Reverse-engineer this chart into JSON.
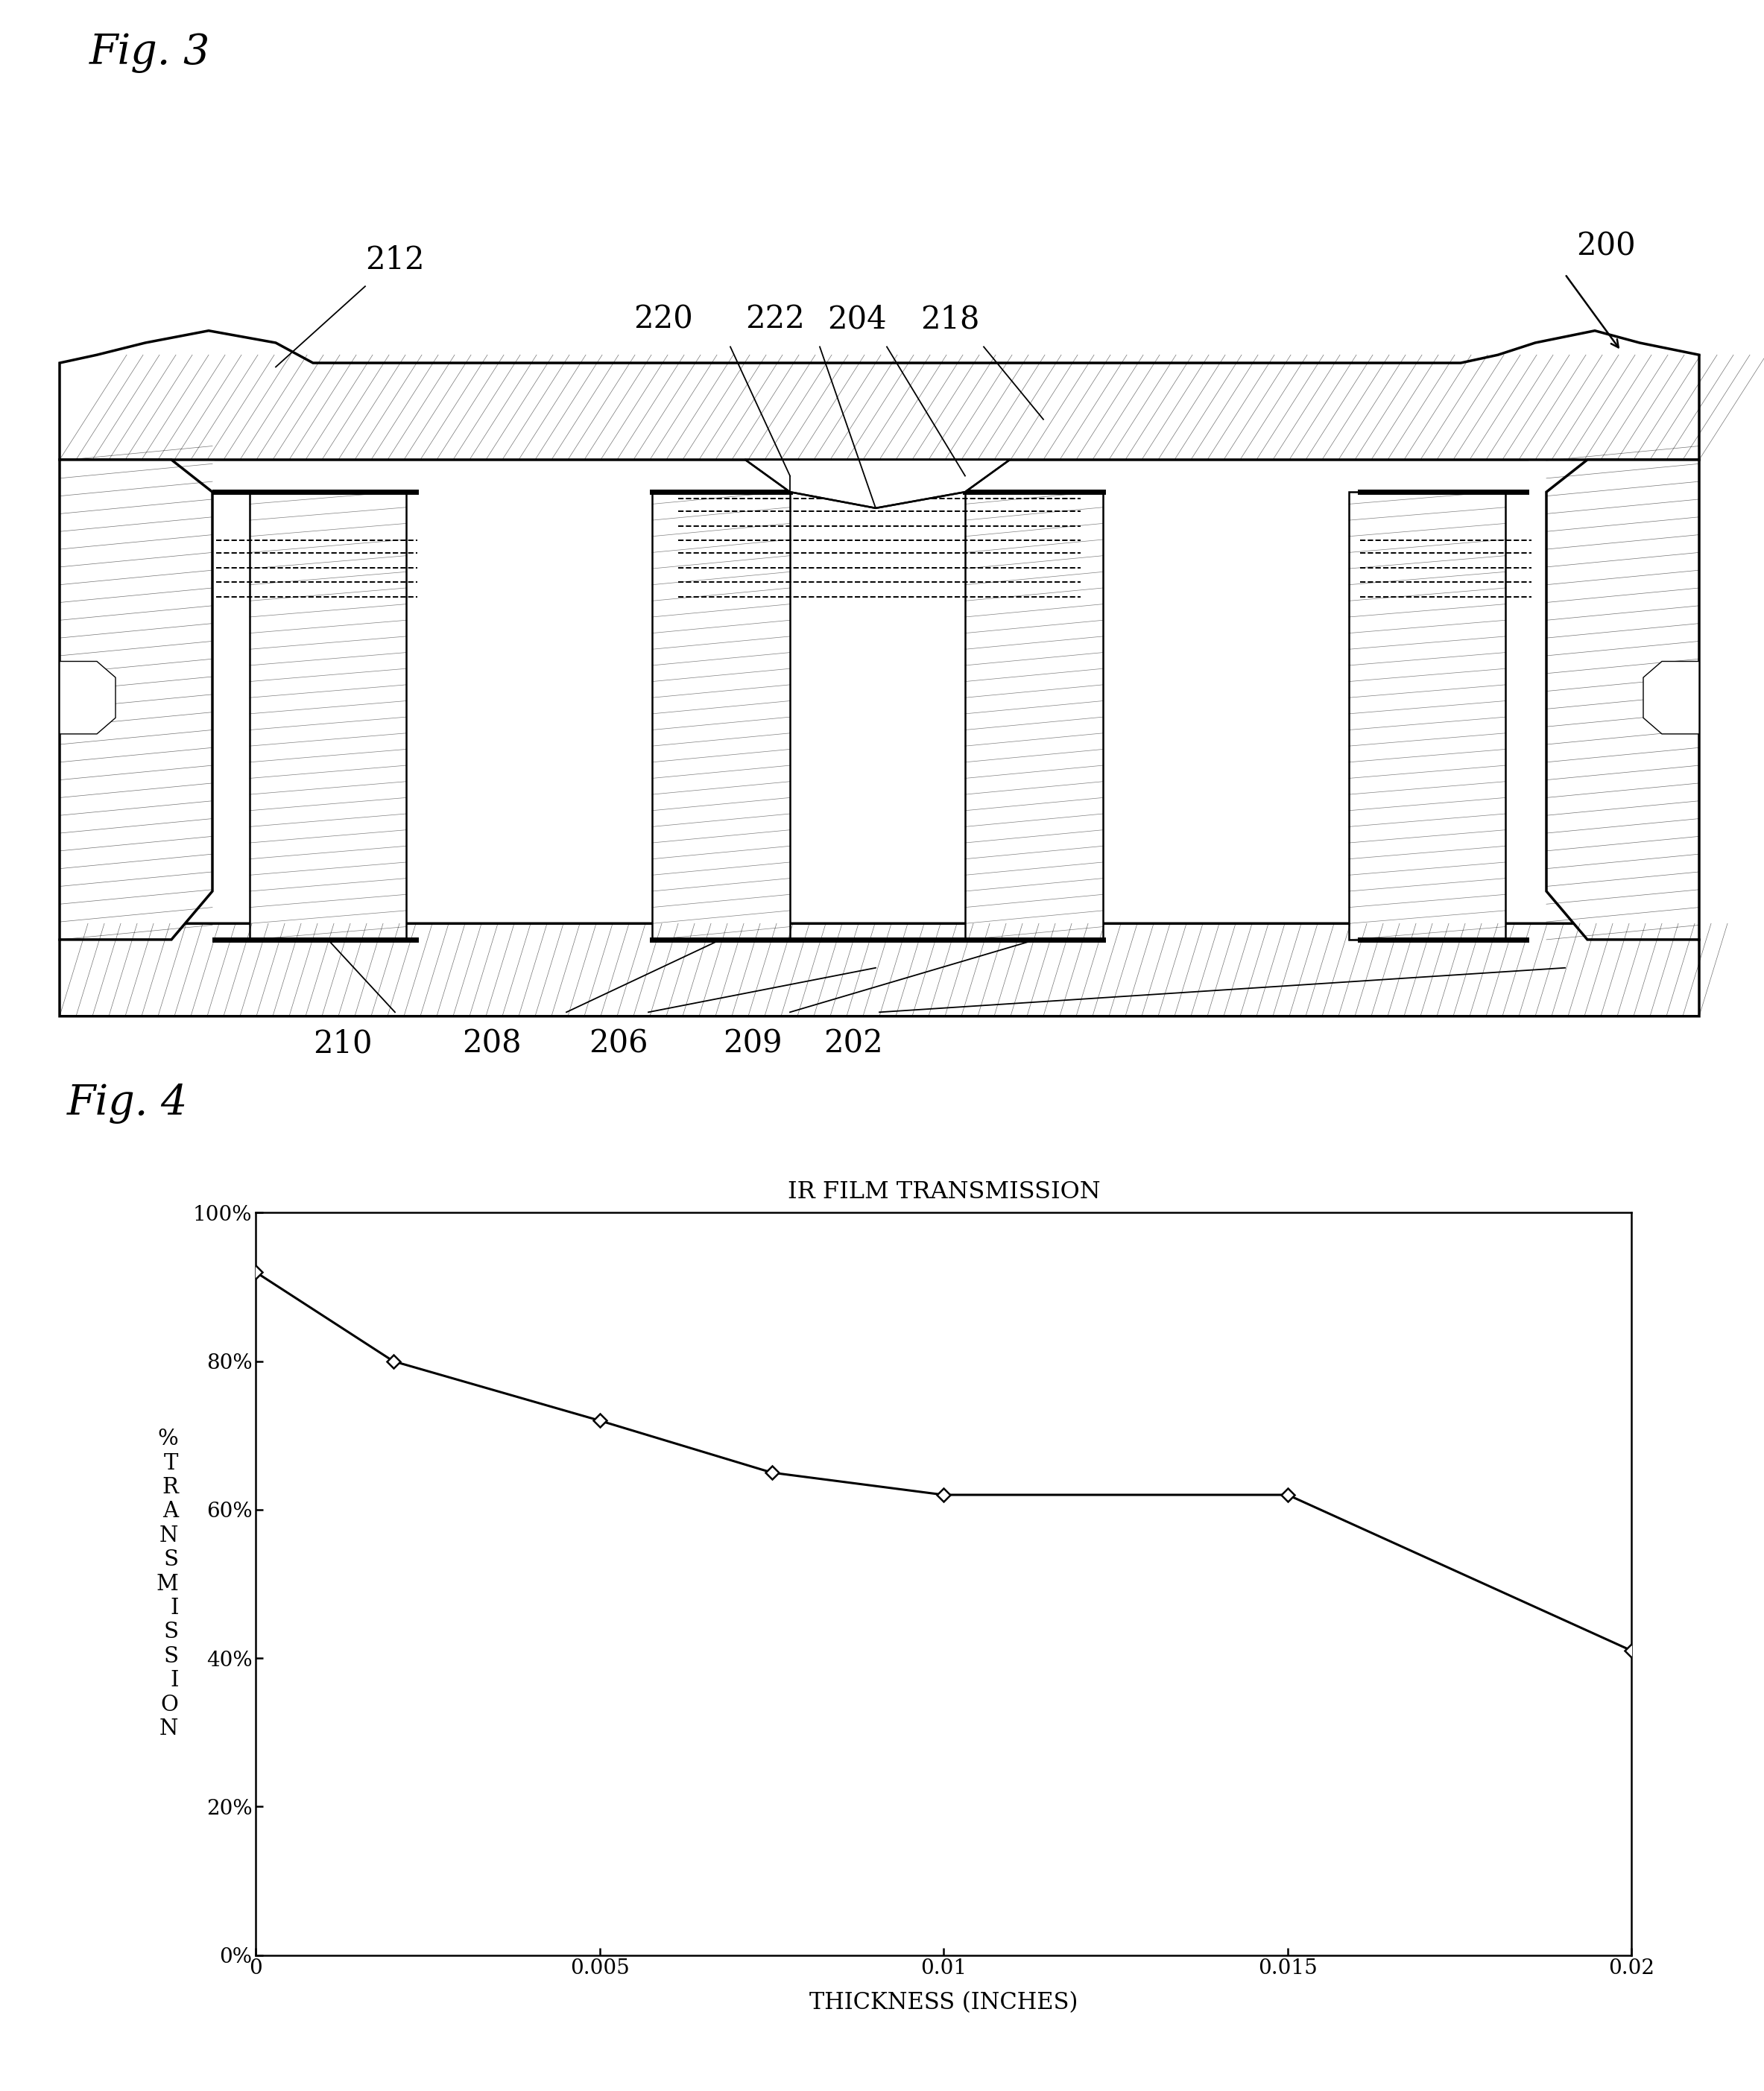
{
  "fig_width": 23.67,
  "fig_height": 28.06,
  "background_color": "#ffffff",
  "fig3_label": "Fig. 3",
  "fig4_label": "Fig. 4",
  "chart_title": "IR FILM TRANSMISSION",
  "x_label": "THICKNESS (INCHES)",
  "y_label": "%\nT\nR\nA\nN\nS\nM\nI\nS\nS\nI\nO\nN",
  "x_data": [
    0.0,
    0.002,
    0.005,
    0.0075,
    0.01,
    0.015,
    0.02
  ],
  "y_data": [
    92,
    80,
    72,
    65,
    62,
    62,
    41
  ],
  "x_ticks": [
    0,
    0.005,
    0.01,
    0.015,
    0.02
  ],
  "x_tick_labels": [
    "0",
    "0.005",
    "0.01",
    "0.015",
    "0.02"
  ],
  "y_ticks": [
    0,
    20,
    40,
    60,
    80,
    100
  ],
  "y_tick_labels": [
    "0%",
    "20%",
    "40%",
    "60%",
    "80%",
    "100%"
  ],
  "line_color": "#000000",
  "marker_style": "D",
  "marker_size": 8,
  "marker_facecolor": "#ffffff",
  "marker_edgecolor": "#000000",
  "xlim": [
    0,
    0.02
  ],
  "ylim": [
    0,
    100
  ]
}
